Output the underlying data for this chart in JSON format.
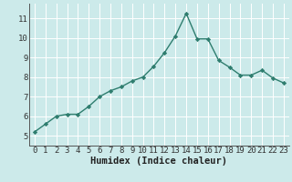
{
  "x": [
    0,
    1,
    2,
    3,
    4,
    5,
    6,
    7,
    8,
    9,
    10,
    11,
    12,
    13,
    14,
    15,
    16,
    17,
    18,
    19,
    20,
    21,
    22,
    23
  ],
  "y": [
    5.2,
    5.6,
    6.0,
    6.1,
    6.1,
    6.5,
    7.0,
    7.3,
    7.5,
    7.8,
    8.0,
    8.55,
    9.25,
    10.1,
    11.25,
    9.95,
    9.95,
    8.85,
    8.5,
    8.1,
    8.1,
    8.35,
    7.95,
    7.7
  ],
  "line_color": "#2e7d6e",
  "marker": "D",
  "marker_size": 2.2,
  "bg_color": "#cceaea",
  "grid_color": "#ffffff",
  "xlabel": "Humidex (Indice chaleur)",
  "xlim": [
    -0.5,
    23.5
  ],
  "ylim": [
    4.5,
    11.75
  ],
  "yticks": [
    5,
    6,
    7,
    8,
    9,
    10,
    11
  ],
  "xticks": [
    0,
    1,
    2,
    3,
    4,
    5,
    6,
    7,
    8,
    9,
    10,
    11,
    12,
    13,
    14,
    15,
    16,
    17,
    18,
    19,
    20,
    21,
    22,
    23
  ],
  "tick_label_fontsize": 6.5,
  "xlabel_fontsize": 7.5,
  "line_width": 1.0
}
